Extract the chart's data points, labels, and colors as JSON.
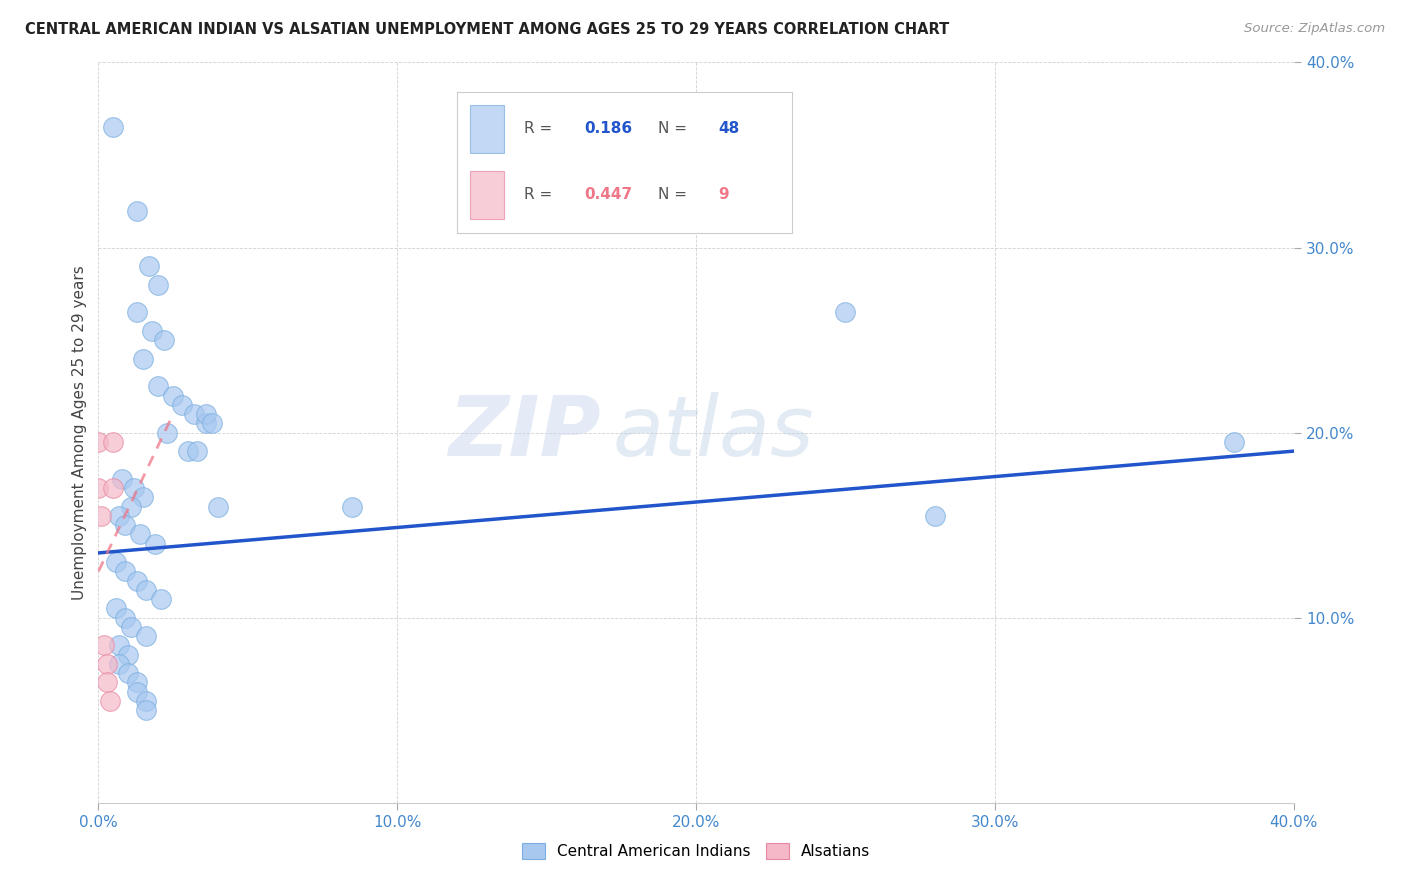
{
  "title": "CENTRAL AMERICAN INDIAN VS ALSATIAN UNEMPLOYMENT AMONG AGES 25 TO 29 YEARS CORRELATION CHART",
  "source": "Source: ZipAtlas.com",
  "ylabel": "Unemployment Among Ages 25 to 29 years",
  "xlim": [
    0.0,
    0.4
  ],
  "ylim": [
    0.0,
    0.4
  ],
  "xticks": [
    0.0,
    0.1,
    0.2,
    0.3,
    0.4
  ],
  "yticks": [
    0.1,
    0.2,
    0.3,
    0.4
  ],
  "xticklabels": [
    "0.0%",
    "10.0%",
    "20.0%",
    "30.0%",
    "40.0%"
  ],
  "yticklabels": [
    "10.0%",
    "20.0%",
    "30.0%",
    "40.0%"
  ],
  "watermark_zip": "ZIP",
  "watermark_atlas": "atlas",
  "blue_color": "#a8c8f0",
  "blue_edge_color": "#7aaee0",
  "pink_color": "#f4b8c8",
  "pink_edge_color": "#e888a0",
  "line_blue_color": "#2255cc",
  "line_pink_color": "#ee7788",
  "r_blue": "0.186",
  "n_blue": "48",
  "r_pink": "0.447",
  "n_pink": "9",
  "blue_points": [
    [
      0.005,
      0.365
    ],
    [
      0.013,
      0.32
    ],
    [
      0.017,
      0.29
    ],
    [
      0.02,
      0.28
    ],
    [
      0.013,
      0.265
    ],
    [
      0.018,
      0.255
    ],
    [
      0.022,
      0.25
    ],
    [
      0.015,
      0.24
    ],
    [
      0.02,
      0.225
    ],
    [
      0.025,
      0.22
    ],
    [
      0.028,
      0.215
    ],
    [
      0.032,
      0.21
    ],
    [
      0.036,
      0.205
    ],
    [
      0.023,
      0.2
    ],
    [
      0.03,
      0.19
    ],
    [
      0.008,
      0.175
    ],
    [
      0.012,
      0.17
    ],
    [
      0.015,
      0.165
    ],
    [
      0.011,
      0.16
    ],
    [
      0.007,
      0.155
    ],
    [
      0.009,
      0.15
    ],
    [
      0.014,
      0.145
    ],
    [
      0.019,
      0.14
    ],
    [
      0.006,
      0.13
    ],
    [
      0.009,
      0.125
    ],
    [
      0.013,
      0.12
    ],
    [
      0.016,
      0.115
    ],
    [
      0.021,
      0.11
    ],
    [
      0.006,
      0.105
    ],
    [
      0.009,
      0.1
    ],
    [
      0.011,
      0.095
    ],
    [
      0.016,
      0.09
    ],
    [
      0.007,
      0.085
    ],
    [
      0.01,
      0.08
    ],
    [
      0.007,
      0.075
    ],
    [
      0.01,
      0.07
    ],
    [
      0.013,
      0.065
    ],
    [
      0.013,
      0.06
    ],
    [
      0.016,
      0.055
    ],
    [
      0.016,
      0.05
    ],
    [
      0.033,
      0.19
    ],
    [
      0.036,
      0.21
    ],
    [
      0.038,
      0.205
    ],
    [
      0.25,
      0.265
    ],
    [
      0.04,
      0.16
    ],
    [
      0.085,
      0.16
    ],
    [
      0.28,
      0.155
    ],
    [
      0.38,
      0.195
    ]
  ],
  "pink_points": [
    [
      0.0,
      0.195
    ],
    [
      0.005,
      0.195
    ],
    [
      0.0,
      0.17
    ],
    [
      0.005,
      0.17
    ],
    [
      0.001,
      0.155
    ],
    [
      0.002,
      0.085
    ],
    [
      0.003,
      0.075
    ],
    [
      0.003,
      0.065
    ],
    [
      0.004,
      0.055
    ]
  ],
  "blue_trendline": [
    [
      0.0,
      0.135
    ],
    [
      0.4,
      0.19
    ]
  ],
  "pink_trendline": [
    [
      0.0,
      0.125
    ],
    [
      0.025,
      0.21
    ]
  ]
}
